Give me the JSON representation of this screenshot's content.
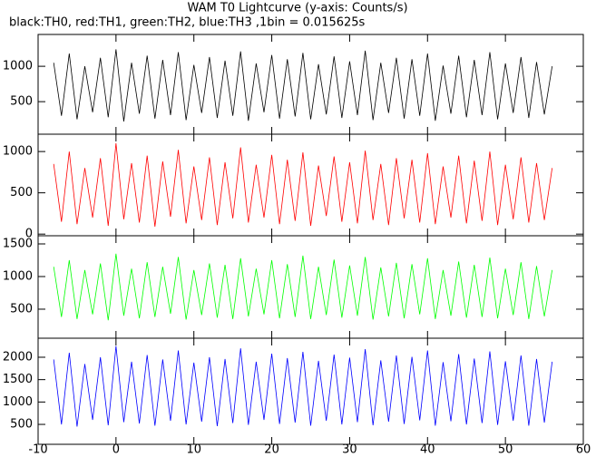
{
  "chart_data": [
    {
      "type": "line",
      "title": "WAM T0 Lightcurve (y-axis: Counts/s)",
      "subtitle": "black:TH0, red:TH1, green:TH2, blue:TH3 ,1bin = 0.015625s",
      "xlim": [
        -10,
        60
      ],
      "ylim": [
        40,
        1450
      ],
      "yticks": [
        500,
        1000
      ],
      "x": [
        -8,
        -7,
        -6,
        -5,
        -4,
        -3,
        -2,
        -1,
        0,
        1,
        2,
        3,
        4,
        5,
        6,
        7,
        8,
        9,
        10,
        11,
        12,
        13,
        14,
        15,
        16,
        17,
        18,
        19,
        20,
        21,
        22,
        23,
        24,
        25,
        26,
        27,
        28,
        29,
        30,
        31,
        32,
        33,
        34,
        35,
        36,
        37,
        38,
        39,
        40,
        41,
        42,
        43,
        44,
        45,
        46,
        47,
        48,
        49,
        50,
        51,
        52,
        53,
        54,
        55,
        56
      ],
      "series": [
        {
          "name": "TH0",
          "color": "#000000",
          "values": [
            1050,
            300,
            1180,
            250,
            1000,
            350,
            1120,
            280,
            1240,
            220,
            1050,
            330,
            1150,
            260,
            1090,
            310,
            1200,
            240,
            1020,
            340,
            1130,
            270,
            1080,
            300,
            1210,
            230,
            1040,
            350,
            1160,
            260,
            1100,
            290,
            1190,
            250,
            1030,
            320,
            1140,
            270,
            1070,
            310,
            1220,
            240,
            1050,
            340,
            1120,
            260,
            1100,
            300,
            1180,
            230,
            1010,
            330,
            1150,
            280,
            1090,
            310,
            1200,
            250,
            1040,
            340,
            1130,
            270,
            1060,
            320,
            1000
          ]
        }
      ]
    },
    {
      "type": "line",
      "xlim": [
        -10,
        60
      ],
      "ylim": [
        -20,
        1210
      ],
      "yticks": [
        0,
        500,
        1000
      ],
      "x": [
        -8,
        -7,
        -6,
        -5,
        -4,
        -3,
        -2,
        -1,
        0,
        1,
        2,
        3,
        4,
        5,
        6,
        7,
        8,
        9,
        10,
        11,
        12,
        13,
        14,
        15,
        16,
        17,
        18,
        19,
        20,
        21,
        22,
        23,
        24,
        25,
        26,
        27,
        28,
        29,
        30,
        31,
        32,
        33,
        34,
        35,
        36,
        37,
        38,
        39,
        40,
        41,
        42,
        43,
        44,
        45,
        46,
        47,
        48,
        49,
        50,
        51,
        52,
        53,
        54,
        55,
        56
      ],
      "series": [
        {
          "name": "TH1",
          "color": "#ff0000",
          "values": [
            850,
            150,
            1000,
            120,
            800,
            200,
            920,
            100,
            1100,
            180,
            860,
            140,
            950,
            90,
            880,
            210,
            1020,
            130,
            820,
            170,
            930,
            110,
            870,
            190,
            1050,
            140,
            840,
            200,
            960,
            120,
            900,
            160,
            990,
            100,
            830,
            220,
            940,
            150,
            870,
            130,
            1010,
            170,
            850,
            110,
            920,
            190,
            900,
            140,
            980,
            120,
            820,
            200,
            950,
            130,
            890,
            160,
            1000,
            110,
            840,
            180,
            930,
            140,
            860,
            170,
            800
          ]
        }
      ]
    },
    {
      "type": "line",
      "xlim": [
        -10,
        60
      ],
      "ylim": [
        55,
        1625
      ],
      "yticks": [
        500,
        1000,
        1500
      ],
      "x": [
        -8,
        -7,
        -6,
        -5,
        -4,
        -3,
        -2,
        -1,
        0,
        1,
        2,
        3,
        4,
        5,
        6,
        7,
        8,
        9,
        10,
        11,
        12,
        13,
        14,
        15,
        16,
        17,
        18,
        19,
        20,
        21,
        22,
        23,
        24,
        25,
        26,
        27,
        28,
        29,
        30,
        31,
        32,
        33,
        34,
        35,
        36,
        37,
        38,
        39,
        40,
        41,
        42,
        43,
        44,
        45,
        46,
        47,
        48,
        49,
        50,
        51,
        52,
        53,
        54,
        55,
        56
      ],
      "series": [
        {
          "name": "TH2",
          "color": "#00ff00",
          "values": [
            1150,
            380,
            1250,
            350,
            1100,
            420,
            1200,
            330,
            1350,
            400,
            1120,
            360,
            1220,
            380,
            1150,
            430,
            1300,
            340,
            1100,
            410,
            1200,
            370,
            1180,
            350,
            1280,
            390,
            1120,
            420,
            1250,
            360,
            1190,
            380,
            1320,
            350,
            1150,
            410,
            1260,
            370,
            1170,
            400,
            1300,
            340,
            1140,
            390,
            1210,
            360,
            1190,
            420,
            1280,
            350,
            1100,
            400,
            1230,
            370,
            1180,
            380,
            1290,
            360,
            1120,
            410,
            1220,
            350,
            1160,
            390,
            1100
          ]
        }
      ]
    },
    {
      "type": "line",
      "xlim": [
        -10,
        60
      ],
      "ylim": [
        55,
        2425
      ],
      "yticks": [
        500,
        1000,
        1500,
        2000
      ],
      "xticks": [
        -10,
        0,
        10,
        20,
        30,
        40,
        50,
        60
      ],
      "x": [
        -8,
        -7,
        -6,
        -5,
        -4,
        -3,
        -2,
        -1,
        0,
        1,
        2,
        3,
        4,
        5,
        6,
        7,
        8,
        9,
        10,
        11,
        12,
        13,
        14,
        15,
        16,
        17,
        18,
        19,
        20,
        21,
        22,
        23,
        24,
        25,
        26,
        27,
        28,
        29,
        30,
        31,
        32,
        33,
        34,
        35,
        36,
        37,
        38,
        39,
        40,
        41,
        42,
        43,
        44,
        45,
        46,
        47,
        48,
        49,
        50,
        51,
        52,
        53,
        54,
        55,
        56
      ],
      "series": [
        {
          "name": "TH3",
          "color": "#0000ff",
          "values": [
            1950,
            500,
            2100,
            450,
            1850,
            600,
            2000,
            480,
            2250,
            550,
            1900,
            520,
            2050,
            470,
            1950,
            580,
            2150,
            500,
            1880,
            560,
            2000,
            460,
            1960,
            530,
            2200,
            490,
            1900,
            600,
            2080,
            510,
            1980,
            540,
            2120,
            470,
            1920,
            580,
            2060,
            500,
            1990,
            550,
            2180,
            480,
            1930,
            560,
            2040,
            510,
            2010,
            590,
            2150,
            470,
            1890,
            570,
            2070,
            500,
            1970,
            530,
            2130,
            490,
            1910,
            580,
            2040,
            470,
            1960,
            540,
            1900
          ]
        }
      ]
    }
  ]
}
